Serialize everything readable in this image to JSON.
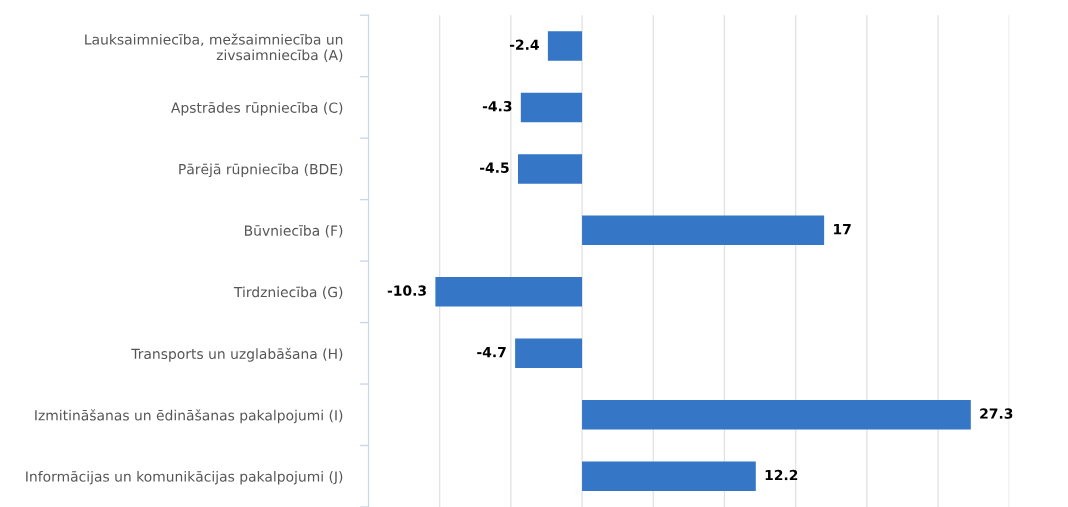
{
  "chart_data": {
    "type": "bar",
    "orientation": "horizontal",
    "categories": [
      "Lauksaimniecība, mežsaimniecība un\nzivsaimniecība (A)",
      "Apstrādes rūpniecība (C)",
      "Pārējā rūpniecība (BDE)",
      "Būvniecība (F)",
      "Tirdzniecība (G)",
      "Transports un uzglabāšana (H)",
      "Izmitināšanas un ēdināšanas pakalpojumi (I)",
      "Informācijas un komunikācijas pakalpojumi (J)"
    ],
    "values": [
      -2.4,
      -4.3,
      -4.5,
      17,
      -10.3,
      -4.7,
      27.3,
      12.2
    ],
    "color": "#3576c6",
    "xlim": [
      -15,
      30
    ],
    "xticks": [
      {
        "value": -15,
        "label": null
      },
      {
        "value": -10,
        "label": null
      },
      {
        "value": -5,
        "label": null
      },
      {
        "value": 0,
        "label": null
      },
      {
        "value": 5,
        "label": null
      },
      {
        "value": 10,
        "label": null
      },
      {
        "value": 15,
        "label": null
      },
      {
        "value": 20,
        "label": null
      },
      {
        "value": 25,
        "label": null
      },
      {
        "value": 30,
        "label": null
      }
    ],
    "grid": "x",
    "tick_labels": "y",
    "data_labels": true
  }
}
